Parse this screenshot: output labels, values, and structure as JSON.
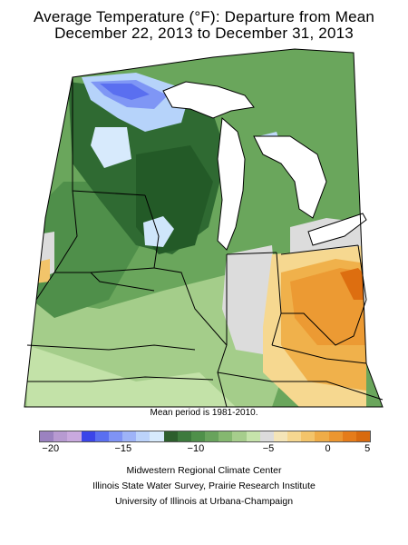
{
  "title": {
    "line1": "Average Temperature (°F): Departure from Mean",
    "line2": "December 22, 2013 to December 31, 2013"
  },
  "map": {
    "region": "Midwestern United States",
    "note": "Mean period is 1981-2010."
  },
  "legend": {
    "colors": [
      "#9b82c0",
      "#b79ad1",
      "#c9a9de",
      "#3b45e8",
      "#5a6ff0",
      "#7f93f5",
      "#9eb3f8",
      "#bcd3fb",
      "#d7eafc",
      "#2d5e2d",
      "#3d7a3d",
      "#4f904a",
      "#68a35c",
      "#85b870",
      "#a6cd8c",
      "#c6e3ab",
      "#dcdcdc",
      "#f4e5b8",
      "#f6d790",
      "#f3c46a",
      "#efac47",
      "#ec9630",
      "#e57c1a",
      "#d86a0e"
    ],
    "ticks": [
      {
        "label": "−20",
        "pos": 0.035
      },
      {
        "label": "−15",
        "pos": 0.255
      },
      {
        "label": "−10",
        "pos": 0.475
      },
      {
        "label": "−5",
        "pos": 0.695
      },
      {
        "label": "0",
        "pos": 0.875
      },
      {
        "label": "5",
        "pos": 0.995
      }
    ]
  },
  "credits": {
    "line1": "Midwestern Regional Climate Center",
    "line2": "Illinois State Water Survey, Prairie Research Institute",
    "line3": "University of Illinois at Urbana-Champaign"
  }
}
